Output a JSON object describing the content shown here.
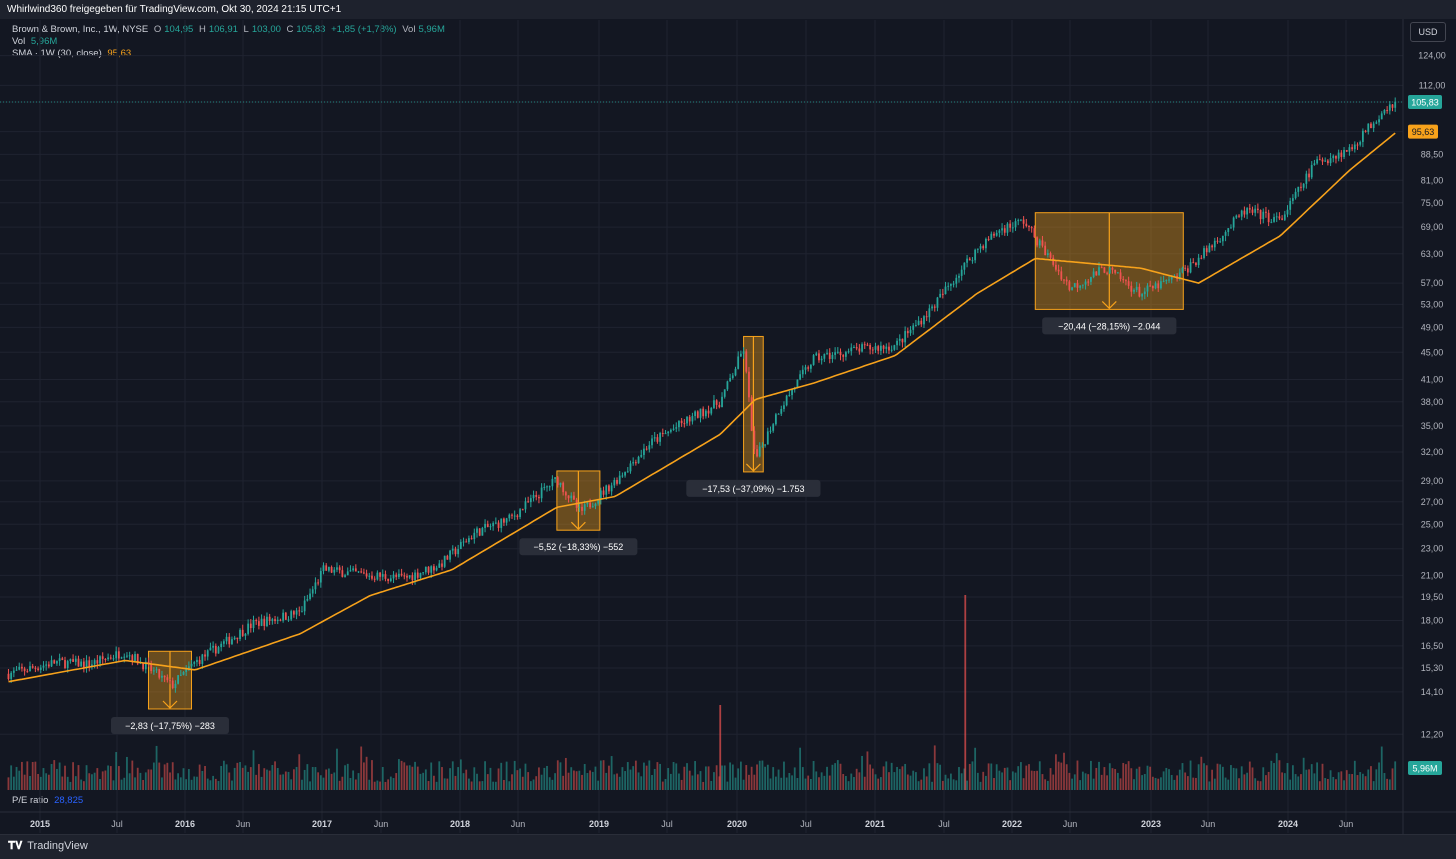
{
  "header": {
    "text": "Whirlwind360 freigegeben für TradingView.com, Okt 30, 2024 21:15 UTC+1"
  },
  "legend": {
    "symbol": "Brown & Brown, Inc., 1W, NYSE",
    "o_label": "O",
    "o_val": "104,95",
    "h_label": "H",
    "h_val": "106,91",
    "l_label": "L",
    "l_val": "103,00",
    "c_label": "C",
    "c_val": "105,83",
    "change": "+1,85 (+1,78%)",
    "vol_label": "Vol",
    "vol_val": "5,96M",
    "vol2_label": "Vol",
    "vol2_val": "5,96M",
    "sma_label": "SMA · 1W (30, close)",
    "sma_val": "95,63",
    "pe_label": "P/E ratio",
    "pe_val": "28,825"
  },
  "currency": "USD",
  "branding": "TradingView",
  "colors": {
    "up": "#26a69a",
    "down": "#ef5350",
    "sma": "#f7a21b",
    "background": "#131722",
    "range_box": "#f7a21b"
  },
  "chart_data": {
    "type": "candlestick",
    "symbol": "Brown & Brown, Inc.",
    "interval": "1W",
    "exchange": "NYSE",
    "scale": "log",
    "y_ticks": [
      "124,00",
      "112,00",
      "105,83",
      "95,63",
      "88,50",
      "81,00",
      "75,00",
      "69,00",
      "63,00",
      "57,00",
      "53,00",
      "49,00",
      "45,00",
      "41,00",
      "38,00",
      "35,00",
      "32,00",
      "29,00",
      "27,00",
      "25,00",
      "23,00",
      "21,00",
      "19,50",
      "18,00",
      "16,50",
      "15,30",
      "14,10",
      "12,20"
    ],
    "x_ticks": [
      "2015",
      "Jul",
      "2016",
      "Jun",
      "2017",
      "Jun",
      "2018",
      "Jun",
      "2019",
      "Jul",
      "2020",
      "Jul",
      "2021",
      "Jul",
      "2022",
      "Jun",
      "2023",
      "Jun",
      "2024",
      "Jun"
    ],
    "last_price": "105,83",
    "last_volume": "5,96M",
    "sma_last": "95,63",
    "price_path": [
      [
        "2014-11",
        15.0
      ],
      [
        "2015-03",
        15.6
      ],
      [
        "2015-06",
        15.5
      ],
      [
        "2015-09",
        16.2
      ],
      [
        "2015-11",
        15.3
      ],
      [
        "2016-01",
        14.4
      ],
      [
        "2016-03",
        15.6
      ],
      [
        "2016-08",
        17.8
      ],
      [
        "2016-12",
        18.5
      ],
      [
        "2017-02",
        21.4
      ],
      [
        "2017-06",
        21.0
      ],
      [
        "2017-09",
        20.8
      ],
      [
        "2017-12",
        21.8
      ],
      [
        "2018-03",
        24.3
      ],
      [
        "2018-06",
        25.5
      ],
      [
        "2018-10",
        29.2
      ],
      [
        "2018-12",
        26.0
      ],
      [
        "2019-03",
        29.0
      ],
      [
        "2019-06",
        33.0
      ],
      [
        "2019-09",
        35.5
      ],
      [
        "2019-12",
        38.0
      ],
      [
        "2020-02",
        45.5
      ],
      [
        "2020-03",
        31.0
      ],
      [
        "2020-05",
        37.0
      ],
      [
        "2020-08",
        44.0
      ],
      [
        "2020-12",
        45.5
      ],
      [
        "2021-03",
        46.0
      ],
      [
        "2021-06",
        52.0
      ],
      [
        "2021-10",
        64.0
      ],
      [
        "2021-12",
        68.5
      ],
      [
        "2022-02",
        70.5
      ],
      [
        "2022-06",
        56.0
      ],
      [
        "2022-09",
        60.0
      ],
      [
        "2022-12",
        55.0
      ],
      [
        "2023-03",
        58.0
      ],
      [
        "2023-05",
        62.0
      ],
      [
        "2023-09",
        73.0
      ],
      [
        "2023-12",
        70.5
      ],
      [
        "2024-03",
        86.0
      ],
      [
        "2024-06",
        90.0
      ],
      [
        "2024-09",
        104.0
      ],
      [
        "2024-10",
        105.83
      ]
    ],
    "sma_path": [
      [
        "2014-11",
        14.6
      ],
      [
        "2015-09",
        15.7
      ],
      [
        "2016-03",
        15.2
      ],
      [
        "2016-12",
        17.2
      ],
      [
        "2017-06",
        19.6
      ],
      [
        "2018-01",
        21.4
      ],
      [
        "2018-10",
        26.5
      ],
      [
        "2019-03",
        27.5
      ],
      [
        "2019-12",
        34.0
      ],
      [
        "2020-03",
        38.3
      ],
      [
        "2020-08",
        40.5
      ],
      [
        "2021-03",
        44.5
      ],
      [
        "2021-10",
        55.0
      ],
      [
        "2022-03",
        62.0
      ],
      [
        "2022-12",
        60.0
      ],
      [
        "2023-05",
        57.0
      ],
      [
        "2023-12",
        67.0
      ],
      [
        "2024-06",
        84.0
      ],
      [
        "2024-10",
        95.63
      ]
    ],
    "ranges": [
      {
        "start": "2015-11",
        "end": "2016-02",
        "high": 16.2,
        "low": 13.3,
        "label": "−2,83 (−17,75%) −283"
      },
      {
        "start": "2018-10",
        "end": "2019-01",
        "high": 30.0,
        "low": 24.5,
        "label": "−5,52 (−18,33%) −552"
      },
      {
        "start": "2020-02",
        "end": "2020-03",
        "high": 47.5,
        "low": 29.9,
        "label": "−17,53 (−37,09%) −1.753"
      },
      {
        "start": "2022-03",
        "end": "2023-03",
        "high": 72.5,
        "low": 52.1,
        "label": "−20,44 (−28,15%) −2.044"
      }
    ]
  }
}
